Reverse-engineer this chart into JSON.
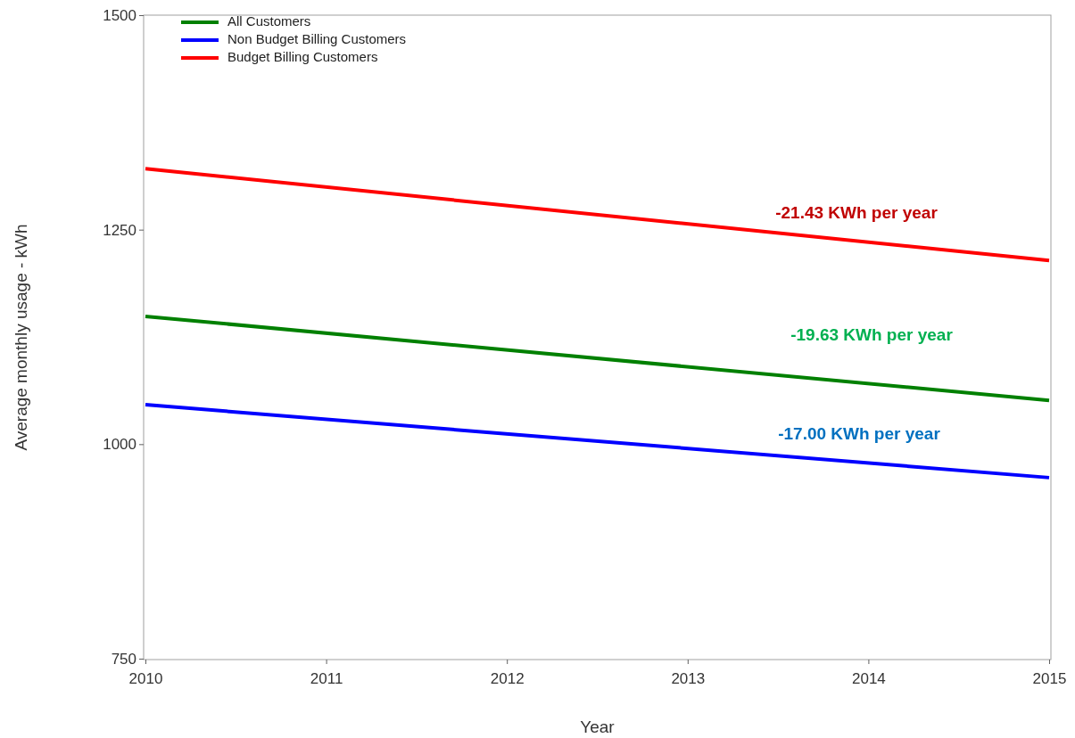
{
  "chart_data": {
    "type": "line",
    "xlabel": "Year",
    "ylabel": "Average monthly usage - kWh",
    "x": [
      2010,
      2015
    ],
    "series": [
      {
        "name": "All Customers",
        "color": "#008000",
        "values": [
          1149,
          1051
        ]
      },
      {
        "name": "Non Budget Billing Customers",
        "color": "#0000ff",
        "values": [
          1046,
          961
        ]
      },
      {
        "name": "Budget Billing Customers",
        "color": "#ff0000",
        "values": [
          1321,
          1214
        ]
      }
    ],
    "xlim": [
      2010,
      2015
    ],
    "xticks": [
      2010,
      2011,
      2012,
      2013,
      2014,
      2015
    ],
    "ylim": [
      750,
      1500
    ],
    "yticks": [
      750,
      1000,
      1250,
      1500
    ],
    "grid": false,
    "legend": "top left",
    "marker": "none",
    "line_style": "solid",
    "annotations": [
      "-21.43 KWh per year",
      "-19.63 KWh per year",
      "-17.00 KWh per year"
    ]
  }
}
